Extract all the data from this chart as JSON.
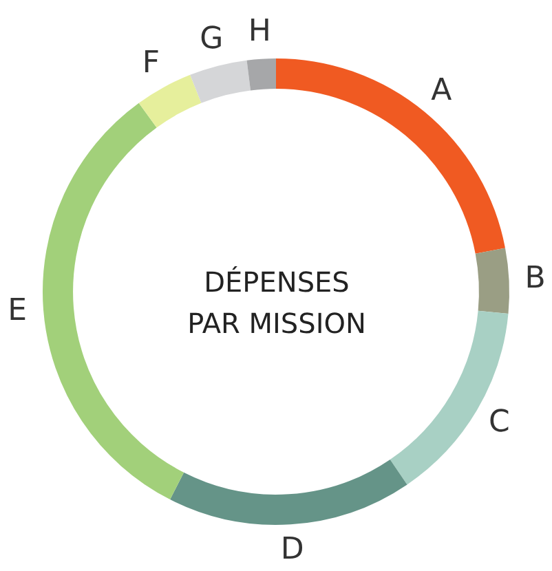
{
  "chart_data": {
    "type": "donut",
    "title": "DÉPENSES PAR MISSION",
    "categories": [
      "A",
      "B",
      "C",
      "D",
      "E",
      "F",
      "G",
      "H"
    ],
    "values": [
      22,
      4.5,
      14,
      17,
      32.5,
      4,
      4,
      2
    ],
    "colors": [
      "#f05a22",
      "#9a9e84",
      "#a8d0c4",
      "#659488",
      "#a2d07a",
      "#e6ef9c",
      "#d5d6d8",
      "#a6a7a9"
    ],
    "legend": false
  }
}
